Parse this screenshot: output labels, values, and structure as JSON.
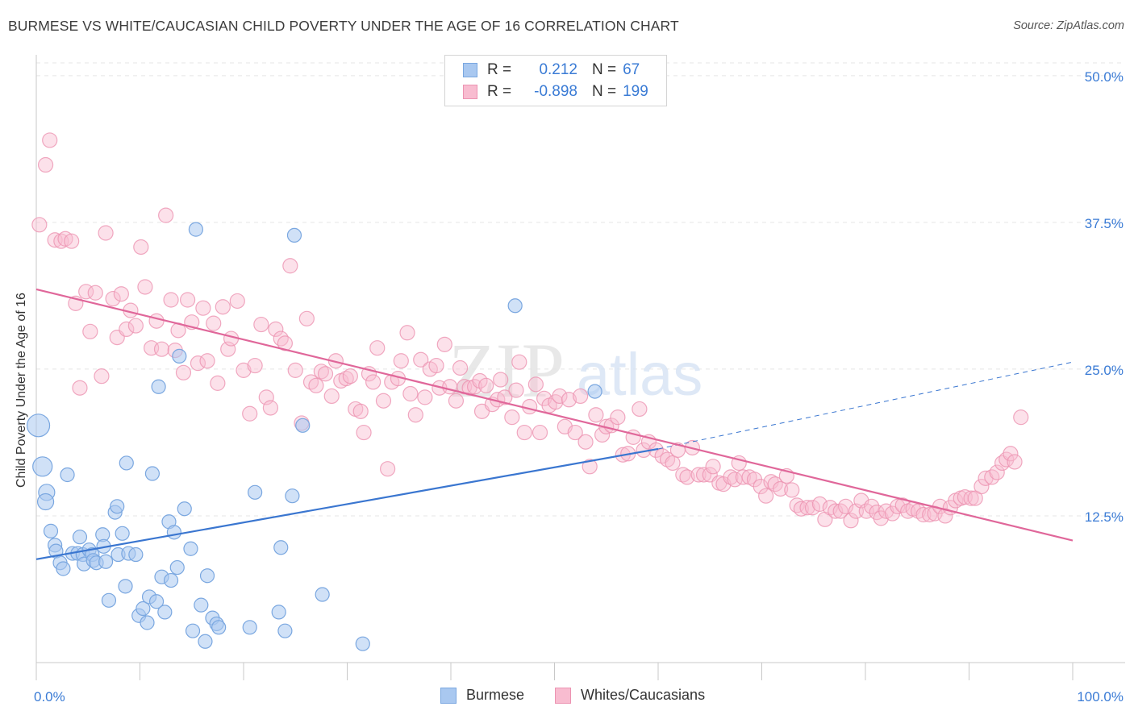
{
  "title": "BURMESE VS WHITE/CAUCASIAN CHILD POVERTY UNDER THE AGE OF 16 CORRELATION CHART",
  "source": "Source: ZipAtlas.com",
  "watermark": {
    "zip": "ZIP",
    "atlas": "atlas"
  },
  "legend": {
    "rows": [
      {
        "r_label": "R =",
        "r_value": "0.212",
        "n_label": "N =",
        "n_value": "67",
        "color": "#a9c8f0",
        "border": "#7aa7e0"
      },
      {
        "r_label": "R =",
        "r_value": "-0.898",
        "n_label": "N =",
        "n_value": "199",
        "color": "#f8bcd0",
        "border": "#ec93b2"
      }
    ]
  },
  "bottom_legend": {
    "items": [
      "Burmese",
      "Whites/Caucasians"
    ]
  },
  "chart_data": {
    "type": "scatter",
    "title": "BURMESE VS WHITE/CAUCASIAN CHILD POVERTY UNDER THE AGE OF 16 CORRELATION CHART",
    "xlabel": "",
    "ylabel": "Child Poverty Under the Age of 16",
    "xlim": [
      0,
      100
    ],
    "ylim": [
      0,
      51.5
    ],
    "x_tick_labels": [
      "0.0%",
      "100.0%"
    ],
    "y_ticks": [
      12.5,
      25.0,
      37.5,
      50.0
    ],
    "y_tick_labels": [
      "12.5%",
      "25.0%",
      "37.5%",
      "50.0%"
    ],
    "grid": true,
    "legend_position": "top-center",
    "colors": {
      "burmese": "#7aa7e0",
      "burmese_fill": "#a9c8f0",
      "burmese_line": "#3a76d0",
      "white": "#ec93b2",
      "white_fill": "#f8bcd0",
      "white_line": "#e0679a",
      "axis_text": "#3a7bd5",
      "grid": "#e5e5e5"
    },
    "trendlines": [
      {
        "series": "Burmese",
        "x": [
          0,
          60
        ],
        "y": [
          8.8,
          18.2
        ],
        "dashed_to": [
          100,
          25.6
        ]
      },
      {
        "series": "Whites/Caucasians",
        "x": [
          0,
          100
        ],
        "y": [
          31.8,
          10.4
        ]
      }
    ],
    "series": [
      {
        "name": "Burmese",
        "points": [
          [
            0.2,
            20.2
          ],
          [
            0.6,
            16.7
          ],
          [
            1.0,
            14.5
          ],
          [
            0.9,
            13.7
          ],
          [
            1.4,
            11.2
          ],
          [
            1.8,
            10.0
          ],
          [
            1.9,
            9.5
          ],
          [
            2.3,
            8.5
          ],
          [
            2.6,
            8.0
          ],
          [
            3.0,
            16.0
          ],
          [
            3.5,
            9.3
          ],
          [
            4.0,
            9.3
          ],
          [
            4.2,
            10.7
          ],
          [
            4.5,
            9.2
          ],
          [
            4.6,
            8.4
          ],
          [
            5.1,
            9.6
          ],
          [
            5.4,
            9.2
          ],
          [
            5.5,
            8.7
          ],
          [
            5.8,
            8.5
          ],
          [
            6.4,
            10.9
          ],
          [
            6.5,
            9.9
          ],
          [
            6.7,
            8.6
          ],
          [
            7.0,
            5.3
          ],
          [
            7.6,
            12.8
          ],
          [
            7.8,
            13.3
          ],
          [
            7.9,
            9.2
          ],
          [
            8.3,
            11.0
          ],
          [
            8.6,
            6.5
          ],
          [
            8.7,
            17.0
          ],
          [
            8.9,
            9.3
          ],
          [
            9.6,
            9.2
          ],
          [
            9.9,
            4.0
          ],
          [
            10.3,
            4.6
          ],
          [
            10.7,
            3.4
          ],
          [
            10.9,
            5.6
          ],
          [
            11.2,
            16.1
          ],
          [
            11.6,
            5.2
          ],
          [
            11.8,
            23.5
          ],
          [
            12.1,
            7.3
          ],
          [
            12.4,
            4.3
          ],
          [
            12.8,
            12.0
          ],
          [
            13.0,
            7.0
          ],
          [
            13.3,
            11.1
          ],
          [
            13.6,
            8.1
          ],
          [
            13.8,
            26.1
          ],
          [
            14.3,
            13.1
          ],
          [
            14.9,
            9.7
          ],
          [
            15.1,
            2.7
          ],
          [
            15.4,
            36.9
          ],
          [
            15.9,
            4.9
          ],
          [
            16.3,
            1.8
          ],
          [
            16.5,
            7.4
          ],
          [
            17.0,
            3.8
          ],
          [
            17.4,
            3.3
          ],
          [
            17.6,
            3.0
          ],
          [
            20.6,
            3.0
          ],
          [
            21.1,
            14.5
          ],
          [
            23.4,
            4.3
          ],
          [
            23.6,
            9.8
          ],
          [
            24.0,
            2.7
          ],
          [
            24.7,
            14.2
          ],
          [
            24.9,
            36.4
          ],
          [
            25.7,
            20.2
          ],
          [
            27.6,
            5.8
          ],
          [
            31.5,
            1.6
          ],
          [
            46.2,
            30.4
          ],
          [
            53.9,
            23.1
          ]
        ]
      },
      {
        "name": "Whites/Caucasians",
        "points": [
          [
            0.3,
            37.3
          ],
          [
            0.9,
            42.4
          ],
          [
            1.3,
            44.5
          ],
          [
            1.8,
            36.0
          ],
          [
            2.4,
            35.9
          ],
          [
            2.8,
            36.1
          ],
          [
            3.4,
            35.9
          ],
          [
            3.8,
            30.6
          ],
          [
            4.2,
            23.4
          ],
          [
            4.8,
            31.6
          ],
          [
            5.2,
            28.2
          ],
          [
            5.7,
            31.5
          ],
          [
            6.3,
            24.4
          ],
          [
            6.7,
            36.6
          ],
          [
            7.4,
            31.0
          ],
          [
            7.8,
            27.7
          ],
          [
            8.2,
            31.4
          ],
          [
            8.7,
            28.4
          ],
          [
            9.1,
            30.0
          ],
          [
            9.6,
            28.7
          ],
          [
            10.1,
            35.4
          ],
          [
            10.5,
            32.0
          ],
          [
            11.1,
            26.8
          ],
          [
            11.6,
            29.1
          ],
          [
            12.1,
            26.7
          ],
          [
            12.5,
            38.1
          ],
          [
            13.0,
            30.9
          ],
          [
            13.4,
            26.6
          ],
          [
            13.7,
            28.3
          ],
          [
            14.2,
            24.7
          ],
          [
            14.6,
            30.9
          ],
          [
            15.0,
            29.0
          ],
          [
            15.6,
            25.5
          ],
          [
            16.1,
            30.2
          ],
          [
            16.5,
            25.7
          ],
          [
            17.1,
            28.9
          ],
          [
            17.5,
            23.8
          ],
          [
            18.0,
            30.3
          ],
          [
            18.5,
            26.7
          ],
          [
            18.8,
            27.6
          ],
          [
            19.4,
            30.8
          ],
          [
            20.0,
            24.9
          ],
          [
            20.6,
            21.2
          ],
          [
            21.1,
            25.3
          ],
          [
            21.7,
            28.8
          ],
          [
            22.2,
            22.6
          ],
          [
            22.6,
            21.7
          ],
          [
            23.1,
            28.4
          ],
          [
            23.6,
            27.6
          ],
          [
            24.0,
            27.2
          ],
          [
            24.5,
            33.8
          ],
          [
            25.0,
            24.9
          ],
          [
            25.6,
            20.4
          ],
          [
            26.1,
            29.3
          ],
          [
            26.5,
            23.9
          ],
          [
            27.0,
            23.6
          ],
          [
            27.5,
            24.8
          ],
          [
            27.9,
            24.6
          ],
          [
            28.5,
            22.7
          ],
          [
            28.9,
            25.7
          ],
          [
            29.4,
            24.0
          ],
          [
            29.9,
            24.2
          ],
          [
            30.3,
            24.4
          ],
          [
            30.8,
            21.6
          ],
          [
            31.3,
            21.4
          ],
          [
            31.6,
            19.6
          ],
          [
            32.1,
            24.6
          ],
          [
            32.5,
            23.9
          ],
          [
            32.9,
            26.8
          ],
          [
            33.5,
            22.3
          ],
          [
            33.9,
            16.5
          ],
          [
            34.3,
            23.9
          ],
          [
            34.9,
            24.2
          ],
          [
            35.2,
            25.7
          ],
          [
            35.8,
            28.1
          ],
          [
            36.1,
            22.9
          ],
          [
            36.6,
            21.1
          ],
          [
            37.1,
            25.8
          ],
          [
            37.5,
            22.6
          ],
          [
            38.0,
            25.0
          ],
          [
            38.6,
            25.3
          ],
          [
            38.9,
            23.4
          ],
          [
            39.4,
            27.1
          ],
          [
            39.9,
            23.5
          ],
          [
            40.5,
            22.3
          ],
          [
            40.9,
            25.1
          ],
          [
            41.3,
            23.5
          ],
          [
            41.8,
            23.4
          ],
          [
            42.3,
            23.5
          ],
          [
            42.8,
            24.0
          ],
          [
            43.0,
            21.4
          ],
          [
            43.4,
            23.6
          ],
          [
            44.0,
            22.0
          ],
          [
            44.5,
            22.4
          ],
          [
            44.8,
            24.1
          ],
          [
            45.2,
            22.6
          ],
          [
            45.9,
            20.9
          ],
          [
            46.3,
            23.2
          ],
          [
            46.6,
            25.6
          ],
          [
            47.1,
            19.6
          ],
          [
            47.6,
            21.8
          ],
          [
            48.2,
            23.7
          ],
          [
            48.6,
            19.6
          ],
          [
            49.0,
            22.5
          ],
          [
            49.5,
            21.9
          ],
          [
            50.1,
            22.2
          ],
          [
            50.5,
            22.7
          ],
          [
            51.0,
            20.1
          ],
          [
            51.4,
            22.4
          ],
          [
            52.0,
            19.6
          ],
          [
            52.5,
            22.7
          ],
          [
            53.0,
            18.8
          ],
          [
            53.4,
            16.7
          ],
          [
            54.0,
            21.1
          ],
          [
            54.6,
            19.4
          ],
          [
            55.0,
            20.1
          ],
          [
            55.5,
            20.2
          ],
          [
            56.1,
            20.9
          ],
          [
            56.6,
            17.7
          ],
          [
            57.1,
            17.8
          ],
          [
            57.6,
            19.2
          ],
          [
            58.2,
            21.6
          ],
          [
            58.6,
            18.1
          ],
          [
            59.1,
            18.8
          ],
          [
            59.8,
            18.1
          ],
          [
            60.4,
            17.6
          ],
          [
            60.9,
            17.3
          ],
          [
            61.4,
            17.0
          ],
          [
            61.9,
            18.1
          ],
          [
            62.4,
            16.0
          ],
          [
            62.8,
            15.8
          ],
          [
            63.3,
            18.3
          ],
          [
            63.9,
            16.0
          ],
          [
            64.4,
            16.0
          ],
          [
            65.0,
            16.0
          ],
          [
            65.3,
            16.7
          ],
          [
            65.9,
            15.3
          ],
          [
            66.3,
            15.2
          ],
          [
            67.0,
            15.8
          ],
          [
            67.4,
            15.6
          ],
          [
            67.8,
            17.0
          ],
          [
            68.2,
            15.8
          ],
          [
            68.8,
            15.8
          ],
          [
            69.3,
            15.6
          ],
          [
            69.9,
            15.0
          ],
          [
            70.4,
            14.2
          ],
          [
            70.9,
            15.4
          ],
          [
            71.3,
            15.2
          ],
          [
            71.8,
            14.8
          ],
          [
            72.4,
            15.9
          ],
          [
            72.9,
            14.7
          ],
          [
            73.4,
            13.4
          ],
          [
            73.8,
            13.1
          ],
          [
            74.4,
            13.2
          ],
          [
            74.9,
            13.2
          ],
          [
            75.6,
            13.5
          ],
          [
            76.1,
            12.2
          ],
          [
            76.6,
            13.2
          ],
          [
            77.1,
            12.9
          ],
          [
            77.6,
            12.9
          ],
          [
            78.1,
            13.3
          ],
          [
            78.6,
            12.1
          ],
          [
            79.1,
            12.9
          ],
          [
            79.6,
            13.8
          ],
          [
            80.1,
            12.9
          ],
          [
            80.6,
            13.3
          ],
          [
            81.1,
            12.8
          ],
          [
            81.5,
            12.3
          ],
          [
            82.0,
            12.9
          ],
          [
            82.6,
            12.7
          ],
          [
            83.1,
            13.3
          ],
          [
            83.6,
            13.4
          ],
          [
            84.1,
            12.9
          ],
          [
            84.6,
            13.1
          ],
          [
            85.1,
            12.9
          ],
          [
            85.6,
            12.6
          ],
          [
            86.2,
            12.6
          ],
          [
            86.7,
            12.7
          ],
          [
            87.2,
            13.3
          ],
          [
            87.7,
            12.5
          ],
          [
            88.2,
            13.2
          ],
          [
            88.7,
            13.8
          ],
          [
            89.2,
            14.0
          ],
          [
            89.6,
            14.1
          ],
          [
            90.2,
            14.0
          ],
          [
            90.6,
            14.0
          ],
          [
            91.2,
            15.0
          ],
          [
            91.6,
            15.7
          ],
          [
            92.2,
            15.8
          ],
          [
            92.7,
            16.2
          ],
          [
            93.2,
            17.0
          ],
          [
            93.6,
            17.3
          ],
          [
            94.0,
            17.8
          ],
          [
            94.4,
            17.1
          ],
          [
            95.0,
            20.9
          ]
        ]
      }
    ]
  }
}
